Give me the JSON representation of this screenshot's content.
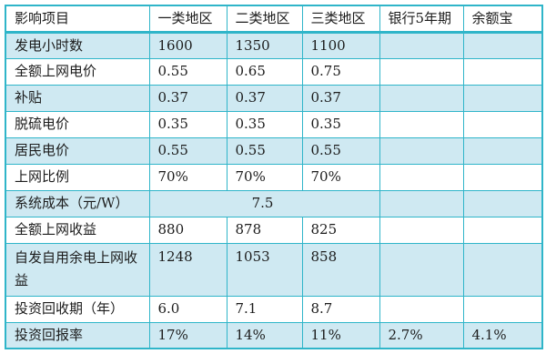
{
  "colors": {
    "border": "#2fb5c9",
    "row_shade": "#cfe9f2",
    "row_plain": "#ffffff",
    "text": "#1c1c1c",
    "background": "#ffffff"
  },
  "chart_data": {
    "type": "table",
    "title": "",
    "columns": [
      "影响项目",
      "一类地区",
      "二类地区",
      "三类地区",
      "银行5年期",
      "余额宝"
    ],
    "rows": [
      {
        "label": "发电小时数",
        "values": [
          "1600",
          "1350",
          "1100",
          "",
          ""
        ]
      },
      {
        "label": "全额上网电价",
        "values": [
          "0.55",
          "0.65",
          "0.75",
          "",
          ""
        ]
      },
      {
        "label": "补贴",
        "values": [
          "0.37",
          "0.37",
          "0.37",
          "",
          ""
        ]
      },
      {
        "label": "脱硫电价",
        "values": [
          "0.35",
          "0.35",
          "0.35",
          "",
          ""
        ]
      },
      {
        "label": "居民电价",
        "values": [
          "0.55",
          "0.55",
          "0.55",
          "",
          ""
        ]
      },
      {
        "label": "上网比例",
        "values": [
          "70%",
          "70%",
          "70%",
          "",
          ""
        ]
      },
      {
        "label": "系统成本（元/W）",
        "merged_value": "7.5",
        "merged_span": 3,
        "values": [
          "7.5",
          "",
          "",
          "",
          ""
        ]
      },
      {
        "label": "全额上网收益",
        "values": [
          "880",
          "878",
          "825",
          "",
          ""
        ]
      },
      {
        "label": "自发自用余电上网收益",
        "values": [
          "1248",
          "1053",
          "858",
          "",
          ""
        ]
      },
      {
        "label": "投资回收期（年）",
        "values": [
          "6.0",
          "7.1",
          "8.7",
          "",
          ""
        ]
      },
      {
        "label": "投资回报率",
        "values": [
          "17%",
          "14%",
          "11%",
          "2.7%",
          "4.1%"
        ]
      }
    ]
  }
}
